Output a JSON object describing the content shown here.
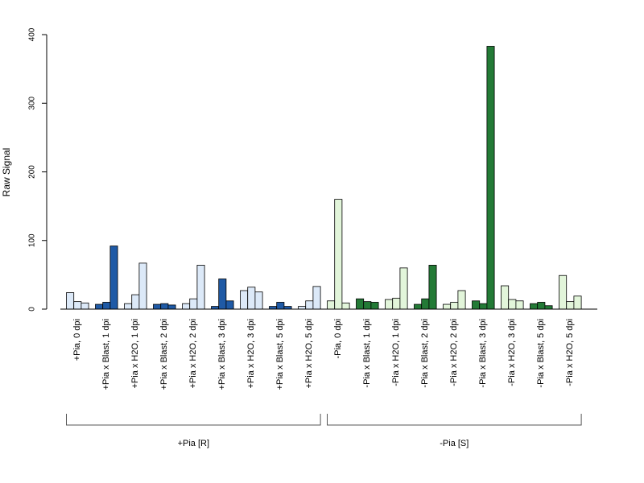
{
  "chart_data": {
    "type": "bar",
    "ylabel": "Raw Signal",
    "ylim": [
      0,
      400
    ],
    "yticks": [
      0,
      100,
      200,
      300,
      400
    ],
    "colors": {
      "plus_light": "#dce9f8",
      "plus_dark": "#1f5aa6",
      "minus_light": "#e2f5da",
      "minus_dark": "#237a36",
      "outline": "#000000"
    },
    "categories": [
      {
        "label": "+Pia, 0 dpi",
        "values": [
          24,
          11,
          9
        ],
        "shade": [
          "plus_light",
          "plus_light",
          "plus_light"
        ]
      },
      {
        "label": "+Pia x Blast, 1 dpi",
        "values": [
          7,
          10,
          92
        ],
        "shade": [
          "plus_dark",
          "plus_dark",
          "plus_dark"
        ]
      },
      {
        "label": "+Pia x H2O, 1 dpi",
        "values": [
          8,
          21,
          67
        ],
        "shade": [
          "plus_light",
          "plus_light",
          "plus_light"
        ]
      },
      {
        "label": "+Pia x Blast, 2 dpi",
        "values": [
          7,
          8,
          6
        ],
        "shade": [
          "plus_dark",
          "plus_dark",
          "plus_dark"
        ]
      },
      {
        "label": "+Pia x H2O, 2 dpi",
        "values": [
          8,
          15,
          64
        ],
        "shade": [
          "plus_light",
          "plus_light",
          "plus_light"
        ]
      },
      {
        "label": "+Pia x Blast, 3 dpi",
        "values": [
          4,
          44,
          12
        ],
        "shade": [
          "plus_dark",
          "plus_dark",
          "plus_dark"
        ]
      },
      {
        "label": "+Pia x H2O, 3 dpi",
        "values": [
          27,
          32,
          25
        ],
        "shade": [
          "plus_light",
          "plus_light",
          "plus_light"
        ]
      },
      {
        "label": "+Pia x Blast, 5 dpi",
        "values": [
          4,
          10,
          4
        ],
        "shade": [
          "plus_dark",
          "plus_dark",
          "plus_dark"
        ]
      },
      {
        "label": "+Pia x H2O, 5 dpi",
        "values": [
          4,
          12,
          33
        ],
        "shade": [
          "plus_light",
          "plus_light",
          "plus_light"
        ]
      },
      {
        "label": "-Pia, 0 dpi",
        "values": [
          12,
          160,
          9
        ],
        "shade": [
          "minus_light",
          "minus_light",
          "minus_light"
        ]
      },
      {
        "label": "-Pia x Blast, 1 dpi",
        "values": [
          15,
          11,
          10
        ],
        "shade": [
          "minus_dark",
          "minus_dark",
          "minus_dark"
        ]
      },
      {
        "label": "-Pia x H2O, 1 dpi",
        "values": [
          14,
          16,
          60
        ],
        "shade": [
          "minus_light",
          "minus_light",
          "minus_light"
        ]
      },
      {
        "label": "-Pia x Blast, 2 dpi",
        "values": [
          7,
          15,
          64
        ],
        "shade": [
          "minus_dark",
          "minus_dark",
          "minus_dark"
        ]
      },
      {
        "label": "-Pia x H2O, 2 dpi",
        "values": [
          7,
          10,
          27
        ],
        "shade": [
          "minus_light",
          "minus_light",
          "minus_light"
        ]
      },
      {
        "label": "-Pia x Blast, 3 dpi",
        "values": [
          12,
          8,
          383
        ],
        "shade": [
          "minus_dark",
          "minus_dark",
          "minus_dark"
        ]
      },
      {
        "label": "-Pia x H2O, 3 dpi",
        "values": [
          34,
          14,
          12
        ],
        "shade": [
          "minus_light",
          "minus_light",
          "minus_light"
        ]
      },
      {
        "label": "-Pia x Blast, 5 dpi",
        "values": [
          8,
          10,
          5
        ],
        "shade": [
          "minus_dark",
          "minus_dark",
          "minus_dark"
        ]
      },
      {
        "label": "-Pia x H2O, 5 dpi",
        "values": [
          49,
          11,
          19
        ],
        "shade": [
          "minus_light",
          "minus_light",
          "minus_light"
        ]
      }
    ],
    "groups": [
      {
        "label": "+Pia [R]",
        "from": 0,
        "to": 8
      },
      {
        "label": "-Pia [S]",
        "from": 9,
        "to": 17
      }
    ]
  }
}
